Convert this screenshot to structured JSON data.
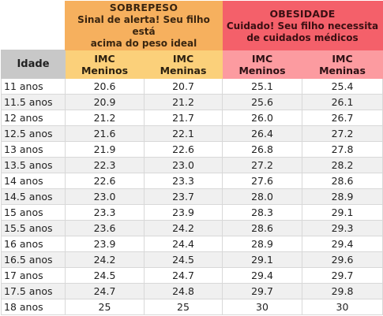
{
  "sobrepeso": {
    "title": "SOBREPESO",
    "description_line1": "Sinal de alerta! Seu filho está",
    "description_line2": "acima do peso ideal"
  },
  "obesidade": {
    "title": "OBESIDADE",
    "description_line1": "Cuidado! Seu filho necessita",
    "description_line2": "de cuidados médicos"
  },
  "columns": {
    "idade": "Idade",
    "imc": "IMC",
    "meninos": "Meninos",
    "meninas": "Meninas"
  },
  "colors": {
    "sobrepeso_header": "#f6b05e",
    "sobrepeso_sub": "#fbd07a",
    "obesidade_header": "#f4606a",
    "obesidade_sub": "#fc9ba0",
    "idade_header": "#c8c8c8"
  },
  "rows": [
    {
      "idade": "11 anos",
      "sobre_meninos": "20.6",
      "sobre_meninas": "20.7",
      "obes_meninos": "25.1",
      "obes_meninas": "25.4"
    },
    {
      "idade": "11.5 anos",
      "sobre_meninos": "20.9",
      "sobre_meninas": "21.2",
      "obes_meninos": "25.6",
      "obes_meninas": "26.1"
    },
    {
      "idade": "12 anos",
      "sobre_meninos": "21.2",
      "sobre_meninas": "21.7",
      "obes_meninos": "26.0",
      "obes_meninas": "26.7"
    },
    {
      "idade": "12.5 anos",
      "sobre_meninos": "21.6",
      "sobre_meninas": "22.1",
      "obes_meninos": "26.4",
      "obes_meninas": "27.2"
    },
    {
      "idade": "13 anos",
      "sobre_meninos": "21.9",
      "sobre_meninas": "22.6",
      "obes_meninos": "26.8",
      "obes_meninas": "27.8"
    },
    {
      "idade": "13.5 anos",
      "sobre_meninos": "22.3",
      "sobre_meninas": "23.0",
      "obes_meninos": "27.2",
      "obes_meninas": "28.2"
    },
    {
      "idade": "14 anos",
      "sobre_meninos": "22.6",
      "sobre_meninas": "23.3",
      "obes_meninos": "27.6",
      "obes_meninas": "28.6"
    },
    {
      "idade": "14.5 anos",
      "sobre_meninos": "23.0",
      "sobre_meninas": "23.7",
      "obes_meninos": "28.0",
      "obes_meninas": "28.9"
    },
    {
      "idade": "15 anos",
      "sobre_meninos": "23.3",
      "sobre_meninas": "23.9",
      "obes_meninos": "28.3",
      "obes_meninas": "29.1"
    },
    {
      "idade": "15.5 anos",
      "sobre_meninos": "23.6",
      "sobre_meninas": "24.2",
      "obes_meninos": "28.6",
      "obes_meninas": "29.3"
    },
    {
      "idade": "16 anos",
      "sobre_meninos": "23.9",
      "sobre_meninas": "24.4",
      "obes_meninos": "28.9",
      "obes_meninas": "29.4"
    },
    {
      "idade": "16.5 anos",
      "sobre_meninos": "24.2",
      "sobre_meninas": "24.5",
      "obes_meninos": "29.1",
      "obes_meninas": "29.6"
    },
    {
      "idade": "17 anos",
      "sobre_meninos": "24.5",
      "sobre_meninas": "24.7",
      "obes_meninos": "29.4",
      "obes_meninas": "29.7"
    },
    {
      "idade": "17.5 anos",
      "sobre_meninos": "24.7",
      "sobre_meninas": "24.8",
      "obes_meninos": "29.7",
      "obes_meninas": "29.8"
    },
    {
      "idade": "18 anos",
      "sobre_meninos": "25",
      "sobre_meninas": "25",
      "obes_meninos": "30",
      "obes_meninas": "30"
    }
  ]
}
